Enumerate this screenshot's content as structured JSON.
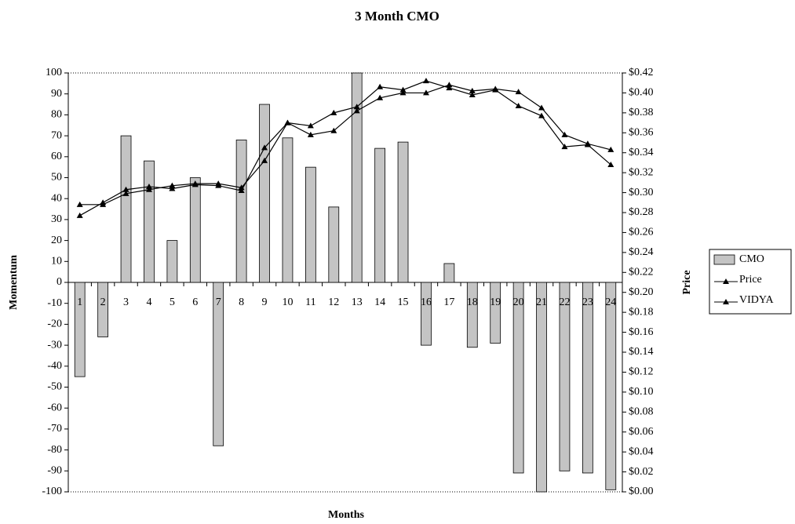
{
  "chart_data": {
    "type": "combo",
    "title": "3 Month CMO",
    "x_label": "Months",
    "y_label": "Momentum",
    "y2_label": "Price",
    "categories": [
      "1",
      "2",
      "3",
      "4",
      "5",
      "6",
      "7",
      "8",
      "9",
      "10",
      "11",
      "12",
      "13",
      "14",
      "15",
      "16",
      "17",
      "18",
      "19",
      "20",
      "21",
      "22",
      "23",
      "24"
    ],
    "series": [
      {
        "name": "CMO",
        "type": "bar",
        "color": "#c4c4c4",
        "values": [
          -45,
          -26,
          70,
          58,
          20,
          50,
          -78,
          68,
          85,
          69,
          55,
          36,
          100,
          64,
          67,
          -30,
          9,
          -31,
          -29,
          -91,
          -100,
          -90,
          -91,
          -99
        ]
      },
      {
        "name": "Price",
        "type": "line",
        "axis": "y2",
        "color": "#000000",
        "values": [
          0.277,
          0.29,
          0.303,
          0.306,
          0.304,
          0.308,
          0.307,
          0.302,
          0.345,
          0.37,
          0.367,
          0.38,
          0.386,
          0.406,
          0.403,
          0.412,
          0.405,
          0.398,
          0.403,
          0.387,
          0.377,
          0.346,
          0.348,
          0.328
        ]
      },
      {
        "name": "VIDYA",
        "type": "line",
        "axis": "y2",
        "color": "#000000",
        "values": [
          0.288,
          0.288,
          0.299,
          0.303,
          0.307,
          0.309,
          0.309,
          0.305,
          0.332,
          0.37,
          0.358,
          0.362,
          0.382,
          0.395,
          0.4,
          0.4,
          0.408,
          0.402,
          0.404,
          0.401,
          0.385,
          0.358,
          0.349,
          0.343
        ]
      }
    ],
    "ylim": [
      -100,
      100
    ],
    "yticks": [
      -100,
      -90,
      -80,
      -70,
      -60,
      -50,
      -40,
      -30,
      -20,
      -10,
      0,
      10,
      20,
      30,
      40,
      50,
      60,
      70,
      80,
      90,
      100
    ],
    "y2lim": [
      0,
      0.42
    ],
    "y2ticks": [
      {
        "value": 0,
        "label": "$0.00"
      },
      {
        "value": 0.02,
        "label": "$0.02"
      },
      {
        "value": 0.04,
        "label": "$0.04"
      },
      {
        "value": 0.06,
        "label": "$0.06"
      },
      {
        "value": 0.08,
        "label": "$0.08"
      },
      {
        "value": 0.1,
        "label": "$0.10"
      },
      {
        "value": 0.12,
        "label": "$0.12"
      },
      {
        "value": 0.14,
        "label": "$0.14"
      },
      {
        "value": 0.16,
        "label": "$0.16"
      },
      {
        "value": 0.18,
        "label": "$0.18"
      },
      {
        "value": 0.2,
        "label": "$0.20"
      },
      {
        "value": 0.22,
        "label": "$0.22"
      },
      {
        "value": 0.24,
        "label": "$0.24"
      },
      {
        "value": 0.26,
        "label": "$0.26"
      },
      {
        "value": 0.28,
        "label": "$0.28"
      },
      {
        "value": 0.3,
        "label": "$0.30"
      },
      {
        "value": 0.32,
        "label": "$0.32"
      },
      {
        "value": 0.34,
        "label": "$0.34"
      },
      {
        "value": 0.36,
        "label": "$0.36"
      },
      {
        "value": 0.38,
        "label": "$0.38"
      },
      {
        "value": 0.4,
        "label": "$0.40"
      },
      {
        "value": 0.42,
        "label": "$0.42"
      }
    ],
    "grid": false,
    "legend": "right"
  }
}
